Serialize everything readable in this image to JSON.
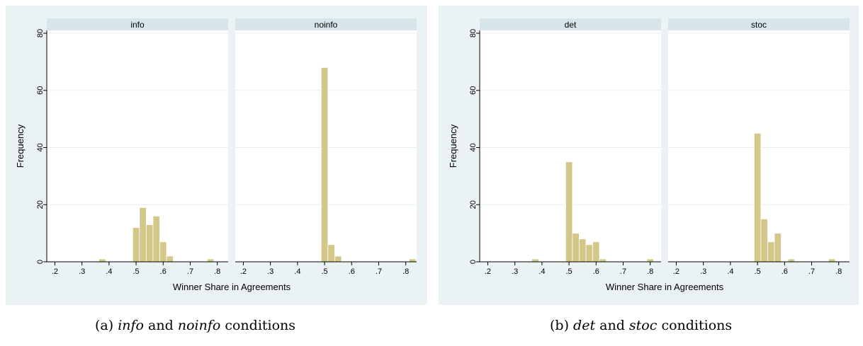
{
  "figure": {
    "captions": [
      {
        "label": "(a)",
        "c1": "info",
        "and": "and",
        "c2": "noinfo",
        "tail": "conditions"
      },
      {
        "label": "(b)",
        "c1": "det",
        "and": "and",
        "c2": "stoc",
        "tail": "conditions"
      }
    ]
  },
  "colors": {
    "bar_fill": "#d3c88a",
    "bar_edge": "#ffffff",
    "strip": "#d6e6ea",
    "outer_bg": "#eaf2f3",
    "plot_bg": "#ffffff",
    "grid": "#e8eef0"
  },
  "chart_data": [
    {
      "type": "bar",
      "ylabel": "Frequency",
      "xlabel": "Winner Share in Agreements",
      "ylim": [
        0,
        80
      ],
      "yticks": [
        0,
        20,
        40,
        60,
        80
      ],
      "xlim": [
        0.17,
        0.84
      ],
      "xticks": [
        0.2,
        0.3,
        0.4,
        0.5,
        0.6,
        0.7,
        0.8
      ],
      "xtick_labels": [
        ".2",
        ".3",
        ".4",
        ".5",
        ".6",
        ".7",
        ".8"
      ],
      "grid": true,
      "bin_width": 0.025,
      "panels": [
        {
          "label": "info",
          "bins": [
            {
              "x": 0.375,
              "value": 1
            },
            {
              "x": 0.5,
              "value": 12
            },
            {
              "x": 0.525,
              "value": 19
            },
            {
              "x": 0.55,
              "value": 13
            },
            {
              "x": 0.575,
              "value": 16
            },
            {
              "x": 0.6,
              "value": 7
            },
            {
              "x": 0.625,
              "value": 2
            },
            {
              "x": 0.775,
              "value": 1
            }
          ]
        },
        {
          "label": "noinfo",
          "bins": [
            {
              "x": 0.5,
              "value": 68
            },
            {
              "x": 0.525,
              "value": 6
            },
            {
              "x": 0.55,
              "value": 2
            },
            {
              "x": 0.825,
              "value": 1
            }
          ]
        }
      ]
    },
    {
      "type": "bar",
      "ylabel": "Frequency",
      "xlabel": "Winner Share in Agreements",
      "ylim": [
        0,
        80
      ],
      "yticks": [
        0,
        20,
        40,
        60,
        80
      ],
      "xlim": [
        0.17,
        0.84
      ],
      "xticks": [
        0.2,
        0.3,
        0.4,
        0.5,
        0.6,
        0.7,
        0.8
      ],
      "xtick_labels": [
        ".2",
        ".3",
        ".4",
        ".5",
        ".6",
        ".7",
        ".8"
      ],
      "grid": true,
      "bin_width": 0.025,
      "panels": [
        {
          "label": "det",
          "bins": [
            {
              "x": 0.375,
              "value": 1
            },
            {
              "x": 0.5,
              "value": 35
            },
            {
              "x": 0.525,
              "value": 10
            },
            {
              "x": 0.55,
              "value": 8
            },
            {
              "x": 0.575,
              "value": 6
            },
            {
              "x": 0.6,
              "value": 7
            },
            {
              "x": 0.625,
              "value": 1
            },
            {
              "x": 0.8,
              "value": 1
            }
          ]
        },
        {
          "label": "stoc",
          "bins": [
            {
              "x": 0.5,
              "value": 45
            },
            {
              "x": 0.525,
              "value": 15
            },
            {
              "x": 0.55,
              "value": 7
            },
            {
              "x": 0.575,
              "value": 10
            },
            {
              "x": 0.625,
              "value": 1
            },
            {
              "x": 0.775,
              "value": 1
            }
          ]
        }
      ]
    }
  ]
}
